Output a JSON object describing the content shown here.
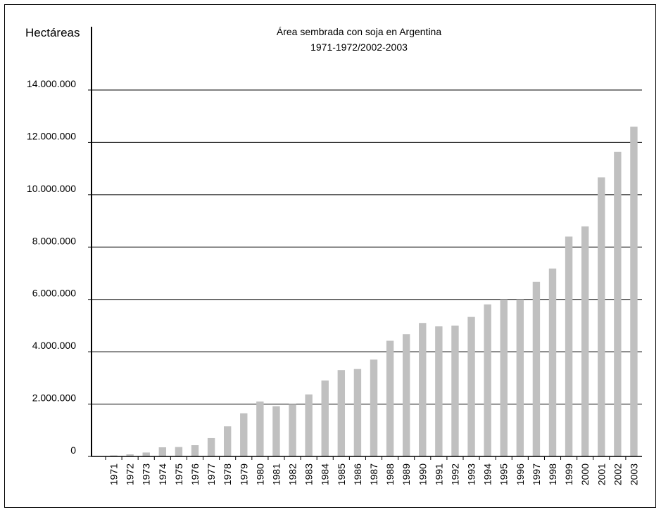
{
  "chart_data": {
    "type": "bar",
    "title": "Área sembrada con soja en Argentina",
    "subtitle": "1971-1972/2002-2003",
    "ylabel": "Hectáreas",
    "xlabel": "",
    "ylim": [
      0,
      14000000
    ],
    "yticks": [
      0,
      2000000,
      4000000,
      6000000,
      8000000,
      10000000,
      12000000,
      14000000
    ],
    "ytick_labels": [
      "0",
      "2.000.000",
      "4.000.000",
      "6.000.000",
      "8.000.000",
      "10.000.000",
      "12.000.000",
      "14.000.000"
    ],
    "grid": true,
    "bar_color": "#c0c0c0",
    "categories": [
      "1971",
      "1972",
      "1973",
      "1974",
      "1975",
      "1976",
      "1977",
      "1978",
      "1979",
      "1980",
      "1981",
      "1982",
      "1983",
      "1984",
      "1985",
      "1986",
      "1987",
      "1988",
      "1989",
      "1990",
      "1991",
      "1992",
      "1993",
      "1994",
      "1995",
      "1996",
      "1997",
      "1998",
      "1999",
      "2000",
      "2001",
      "2002",
      "2003"
    ],
    "values": [
      40000,
      80000,
      150000,
      350000,
      360000,
      430000,
      700000,
      1150000,
      1650000,
      2100000,
      1920000,
      2000000,
      2370000,
      2900000,
      3300000,
      3340000,
      3700000,
      4420000,
      4670000,
      5100000,
      4970000,
      5000000,
      5330000,
      5810000,
      6000000,
      6000000,
      6670000,
      7180000,
      8400000,
      8790000,
      10660000,
      11640000,
      12600000
    ]
  }
}
